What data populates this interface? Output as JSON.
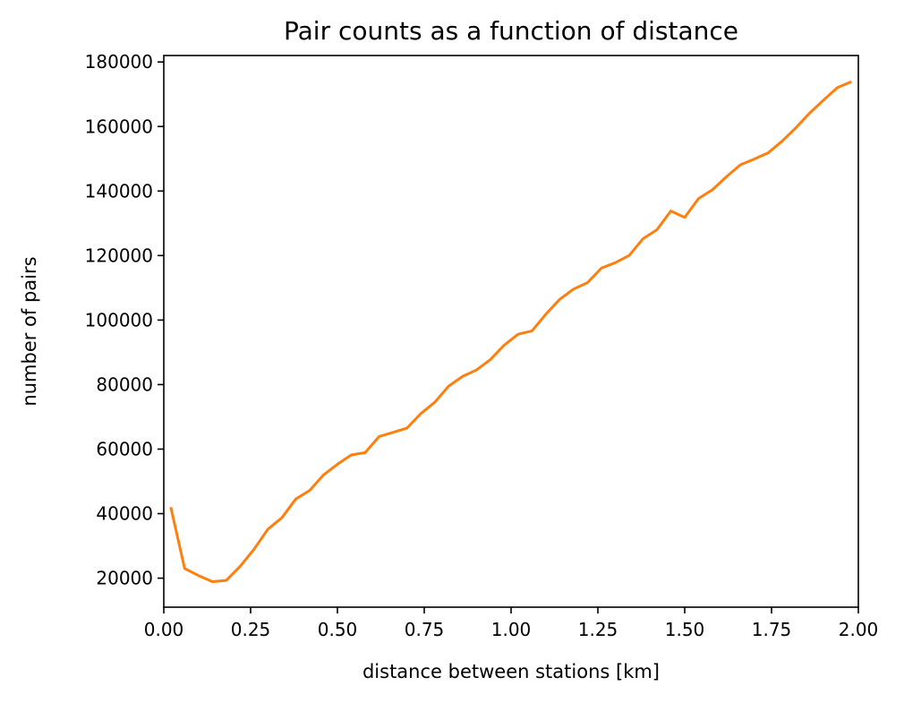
{
  "chart_data": {
    "type": "line",
    "title": "Pair counts as a function of distance",
    "xlabel": "distance between stations [km]",
    "ylabel": "number of pairs",
    "xlim": [
      0.0,
      2.0
    ],
    "ylim": [
      11000,
      182000
    ],
    "xticks": [
      0.0,
      0.25,
      0.5,
      0.75,
      1.0,
      1.25,
      1.5,
      1.75,
      2.0
    ],
    "xtick_labels": [
      "0.00",
      "0.25",
      "0.50",
      "0.75",
      "1.00",
      "1.25",
      "1.50",
      "1.75",
      "2.00"
    ],
    "yticks": [
      20000,
      40000,
      60000,
      80000,
      100000,
      120000,
      140000,
      160000,
      180000
    ],
    "ytick_labels": [
      "20000",
      "40000",
      "60000",
      "80000",
      "100000",
      "120000",
      "140000",
      "160000",
      "180000"
    ],
    "grid": false,
    "series": [
      {
        "color": "#ff7f0e",
        "x": [
          0.02,
          0.06,
          0.1,
          0.14,
          0.18,
          0.22,
          0.26,
          0.3,
          0.34,
          0.38,
          0.42,
          0.46,
          0.5,
          0.54,
          0.58,
          0.62,
          0.66,
          0.7,
          0.74,
          0.78,
          0.82,
          0.86,
          0.9,
          0.94,
          0.98,
          1.02,
          1.06,
          1.1,
          1.14,
          1.18,
          1.22,
          1.26,
          1.3,
          1.34,
          1.38,
          1.42,
          1.46,
          1.5,
          1.54,
          1.58,
          1.62,
          1.66,
          1.7,
          1.74,
          1.78,
          1.82,
          1.86,
          1.9,
          1.94,
          1.98
        ],
        "values": [
          42000,
          23000,
          20800,
          18900,
          19300,
          23700,
          29000,
          35200,
          38700,
          44500,
          47200,
          52000,
          55300,
          58200,
          58900,
          63900,
          65200,
          66500,
          71000,
          74500,
          79500,
          82500,
          84500,
          87700,
          92200,
          95600,
          96600,
          101800,
          106400,
          109600,
          111600,
          116100,
          117800,
          120000,
          125200,
          128000,
          133800,
          131800,
          137700,
          140400,
          144400,
          148100,
          149900,
          151800,
          155400,
          159600,
          164200,
          168200,
          172100,
          173900
        ]
      }
    ]
  }
}
